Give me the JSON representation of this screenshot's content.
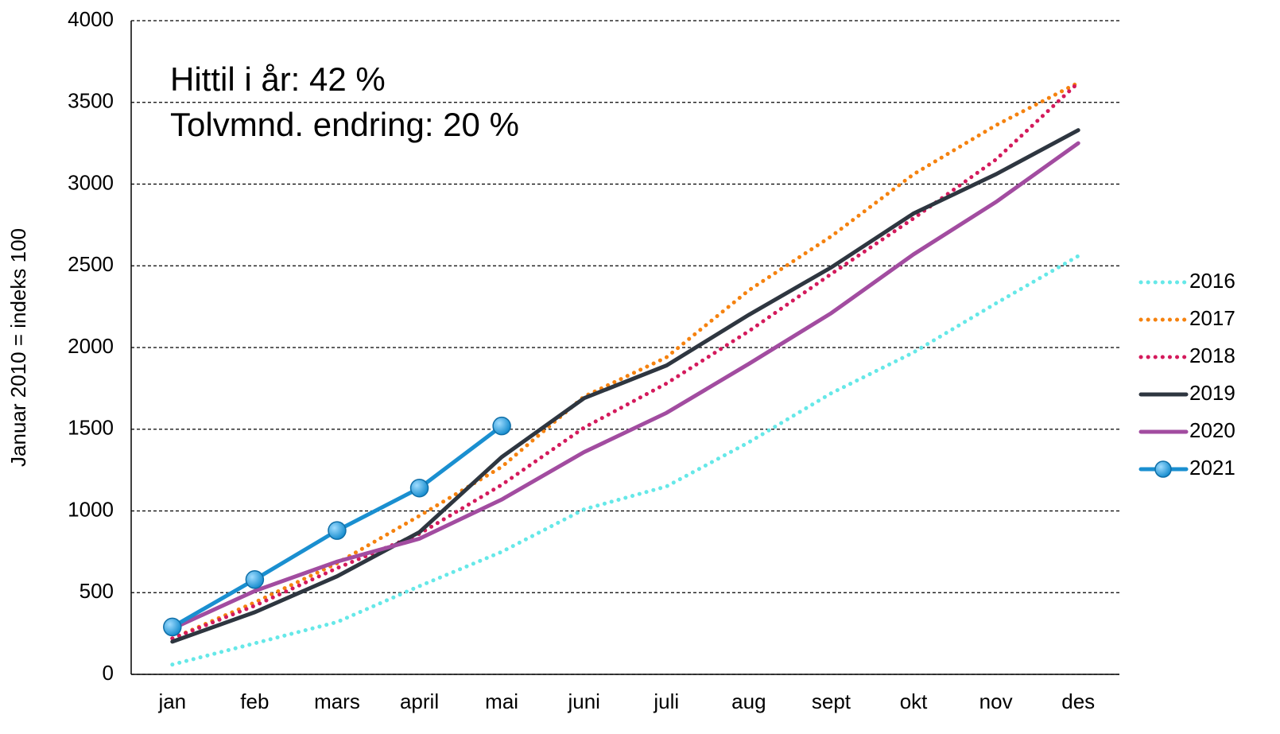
{
  "chart_data": {
    "type": "line",
    "annotations": [
      "Hittil i år: 42 %",
      "Tolvmnd. endring: 20 %"
    ],
    "y_label": "Januar 2010 = indeks 100",
    "categories": [
      "jan",
      "feb",
      "mars",
      "april",
      "mai",
      "juni",
      "juli",
      "aug",
      "sept",
      "okt",
      "nov",
      "des"
    ],
    "series": [
      {
        "name": "2016",
        "color": "#66e8e8",
        "style": "dotted",
        "values": [
          60,
          190,
          320,
          540,
          750,
          1010,
          1150,
          1420,
          1720,
          1970,
          2270,
          2560
        ]
      },
      {
        "name": "2017",
        "color": "#f5820f",
        "style": "dotted",
        "values": [
          220,
          440,
          680,
          970,
          1270,
          1700,
          1940,
          2350,
          2680,
          3060,
          3360,
          3620
        ]
      },
      {
        "name": "2018",
        "color": "#d41a5c",
        "style": "dotted",
        "values": [
          220,
          420,
          650,
          860,
          1160,
          1510,
          1780,
          2100,
          2450,
          2790,
          3150,
          3620
        ]
      },
      {
        "name": "2019",
        "color": "#2e3640",
        "style": "solid",
        "values": [
          200,
          380,
          600,
          870,
          1330,
          1690,
          1890,
          2200,
          2490,
          2820,
          3060,
          3330
        ]
      },
      {
        "name": "2020",
        "color": "#a24ca0",
        "style": "solid",
        "values": [
          280,
          510,
          690,
          830,
          1070,
          1360,
          1600,
          1900,
          2210,
          2570,
          2890,
          3250
        ]
      },
      {
        "name": "2021",
        "color": "#1a8fd0",
        "style": "solid",
        "marker": true,
        "values": [
          290,
          580,
          880,
          1140,
          1520,
          null,
          null,
          null,
          null,
          null,
          null,
          null
        ]
      }
    ],
    "ylim": [
      0,
      4000
    ],
    "yticks": [
      0,
      500,
      1000,
      1500,
      2000,
      2500,
      3000,
      3500,
      4000
    ],
    "grid": true,
    "legend": "right"
  }
}
